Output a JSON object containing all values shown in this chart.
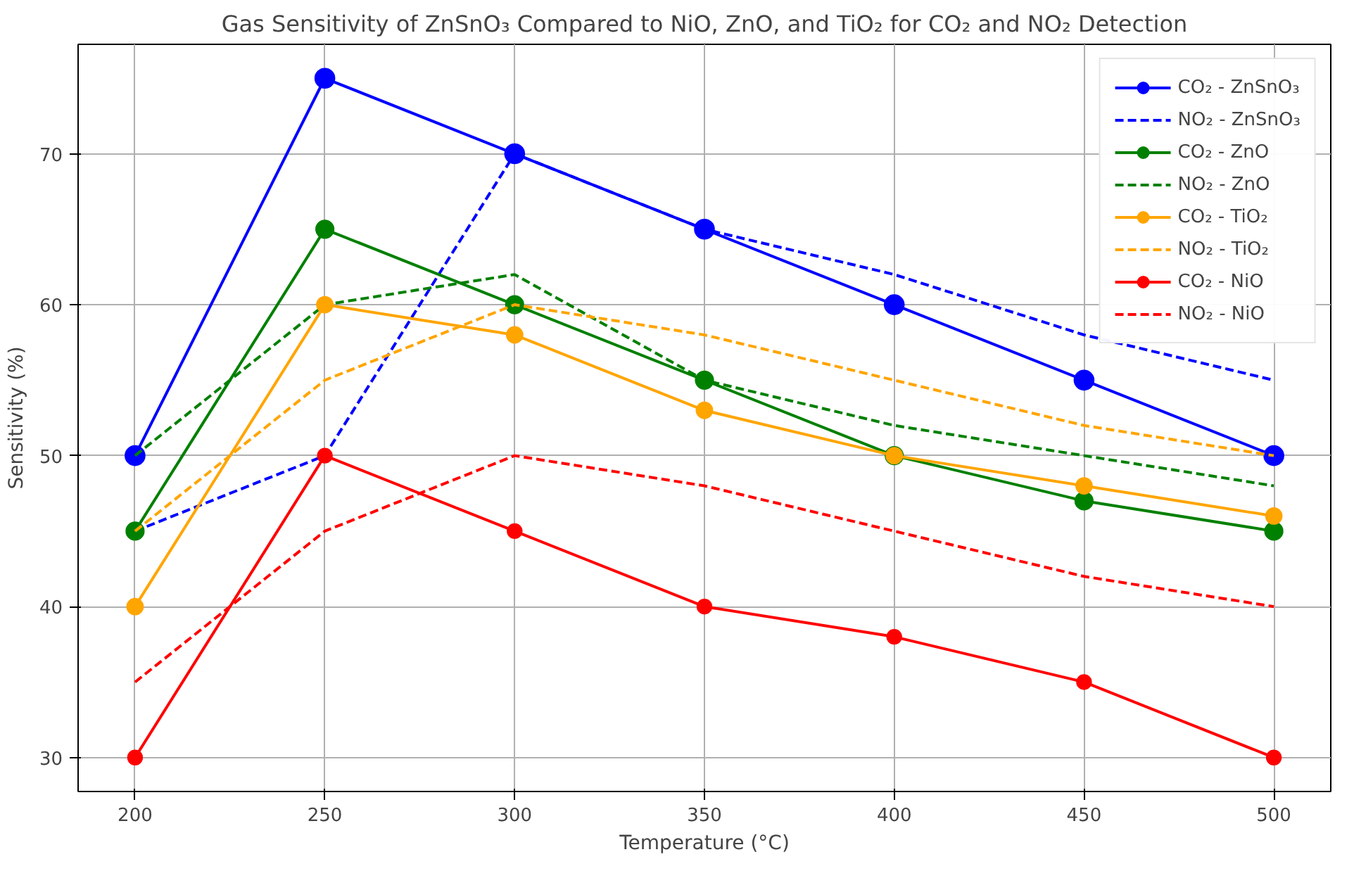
{
  "chart_data": {
    "type": "line",
    "title": "Gas Sensitivity of ZnSnO₃ Compared to NiO, ZnO, and TiO₂ for CO₂ and NO₂ Detection",
    "xlabel": "Temperature (°C)",
    "ylabel": "Sensitivity (%)",
    "x": [
      200,
      250,
      300,
      350,
      400,
      450,
      500
    ],
    "xlim": [
      185,
      515
    ],
    "xticks": [
      200,
      250,
      300,
      350,
      400,
      450,
      500
    ],
    "ylim": [
      27.75,
      77.25
    ],
    "yticks": [
      30,
      40,
      50,
      60,
      70
    ],
    "grid": true,
    "legend": "top right",
    "series": [
      {
        "name": "CO₂ - ZnSnO₃",
        "color": "#0000ff",
        "marker": "circle",
        "line_style": "solid",
        "values": [
          50,
          75,
          70,
          65,
          60,
          55,
          50
        ]
      },
      {
        "name": "NO₂ - ZnSnO₃",
        "color": "#0000ff",
        "marker": "none",
        "line_style": "dashed",
        "values": [
          45,
          50,
          70,
          65,
          62,
          58,
          55
        ]
      },
      {
        "name": "CO₂ - ZnO",
        "color": "#008000",
        "marker": "circle",
        "line_style": "solid",
        "values": [
          45,
          65,
          60,
          55,
          50,
          47,
          45
        ]
      },
      {
        "name": "NO₂ - ZnO",
        "color": "#008000",
        "marker": "none",
        "line_style": "dashed",
        "values": [
          50,
          60,
          62,
          55,
          52,
          50,
          48
        ]
      },
      {
        "name": "CO₂ - TiO₂",
        "color": "#ffa500",
        "marker": "circle",
        "line_style": "solid",
        "values": [
          40,
          60,
          58,
          53,
          50,
          48,
          46
        ]
      },
      {
        "name": "NO₂ - TiO₂",
        "color": "#ffa500",
        "marker": "none",
        "line_style": "dashed",
        "values": [
          45,
          55,
          60,
          58,
          55,
          52,
          50
        ]
      },
      {
        "name": "CO₂ - NiO",
        "color": "#ff0000",
        "marker": "circle",
        "line_style": "solid",
        "values": [
          30,
          50,
          45,
          40,
          38,
          35,
          30
        ]
      },
      {
        "name": "NO₂ - NiO",
        "color": "#ff0000",
        "marker": "none",
        "line_style": "dashed",
        "values": [
          35,
          45,
          50,
          48,
          45,
          42,
          40
        ]
      }
    ]
  }
}
